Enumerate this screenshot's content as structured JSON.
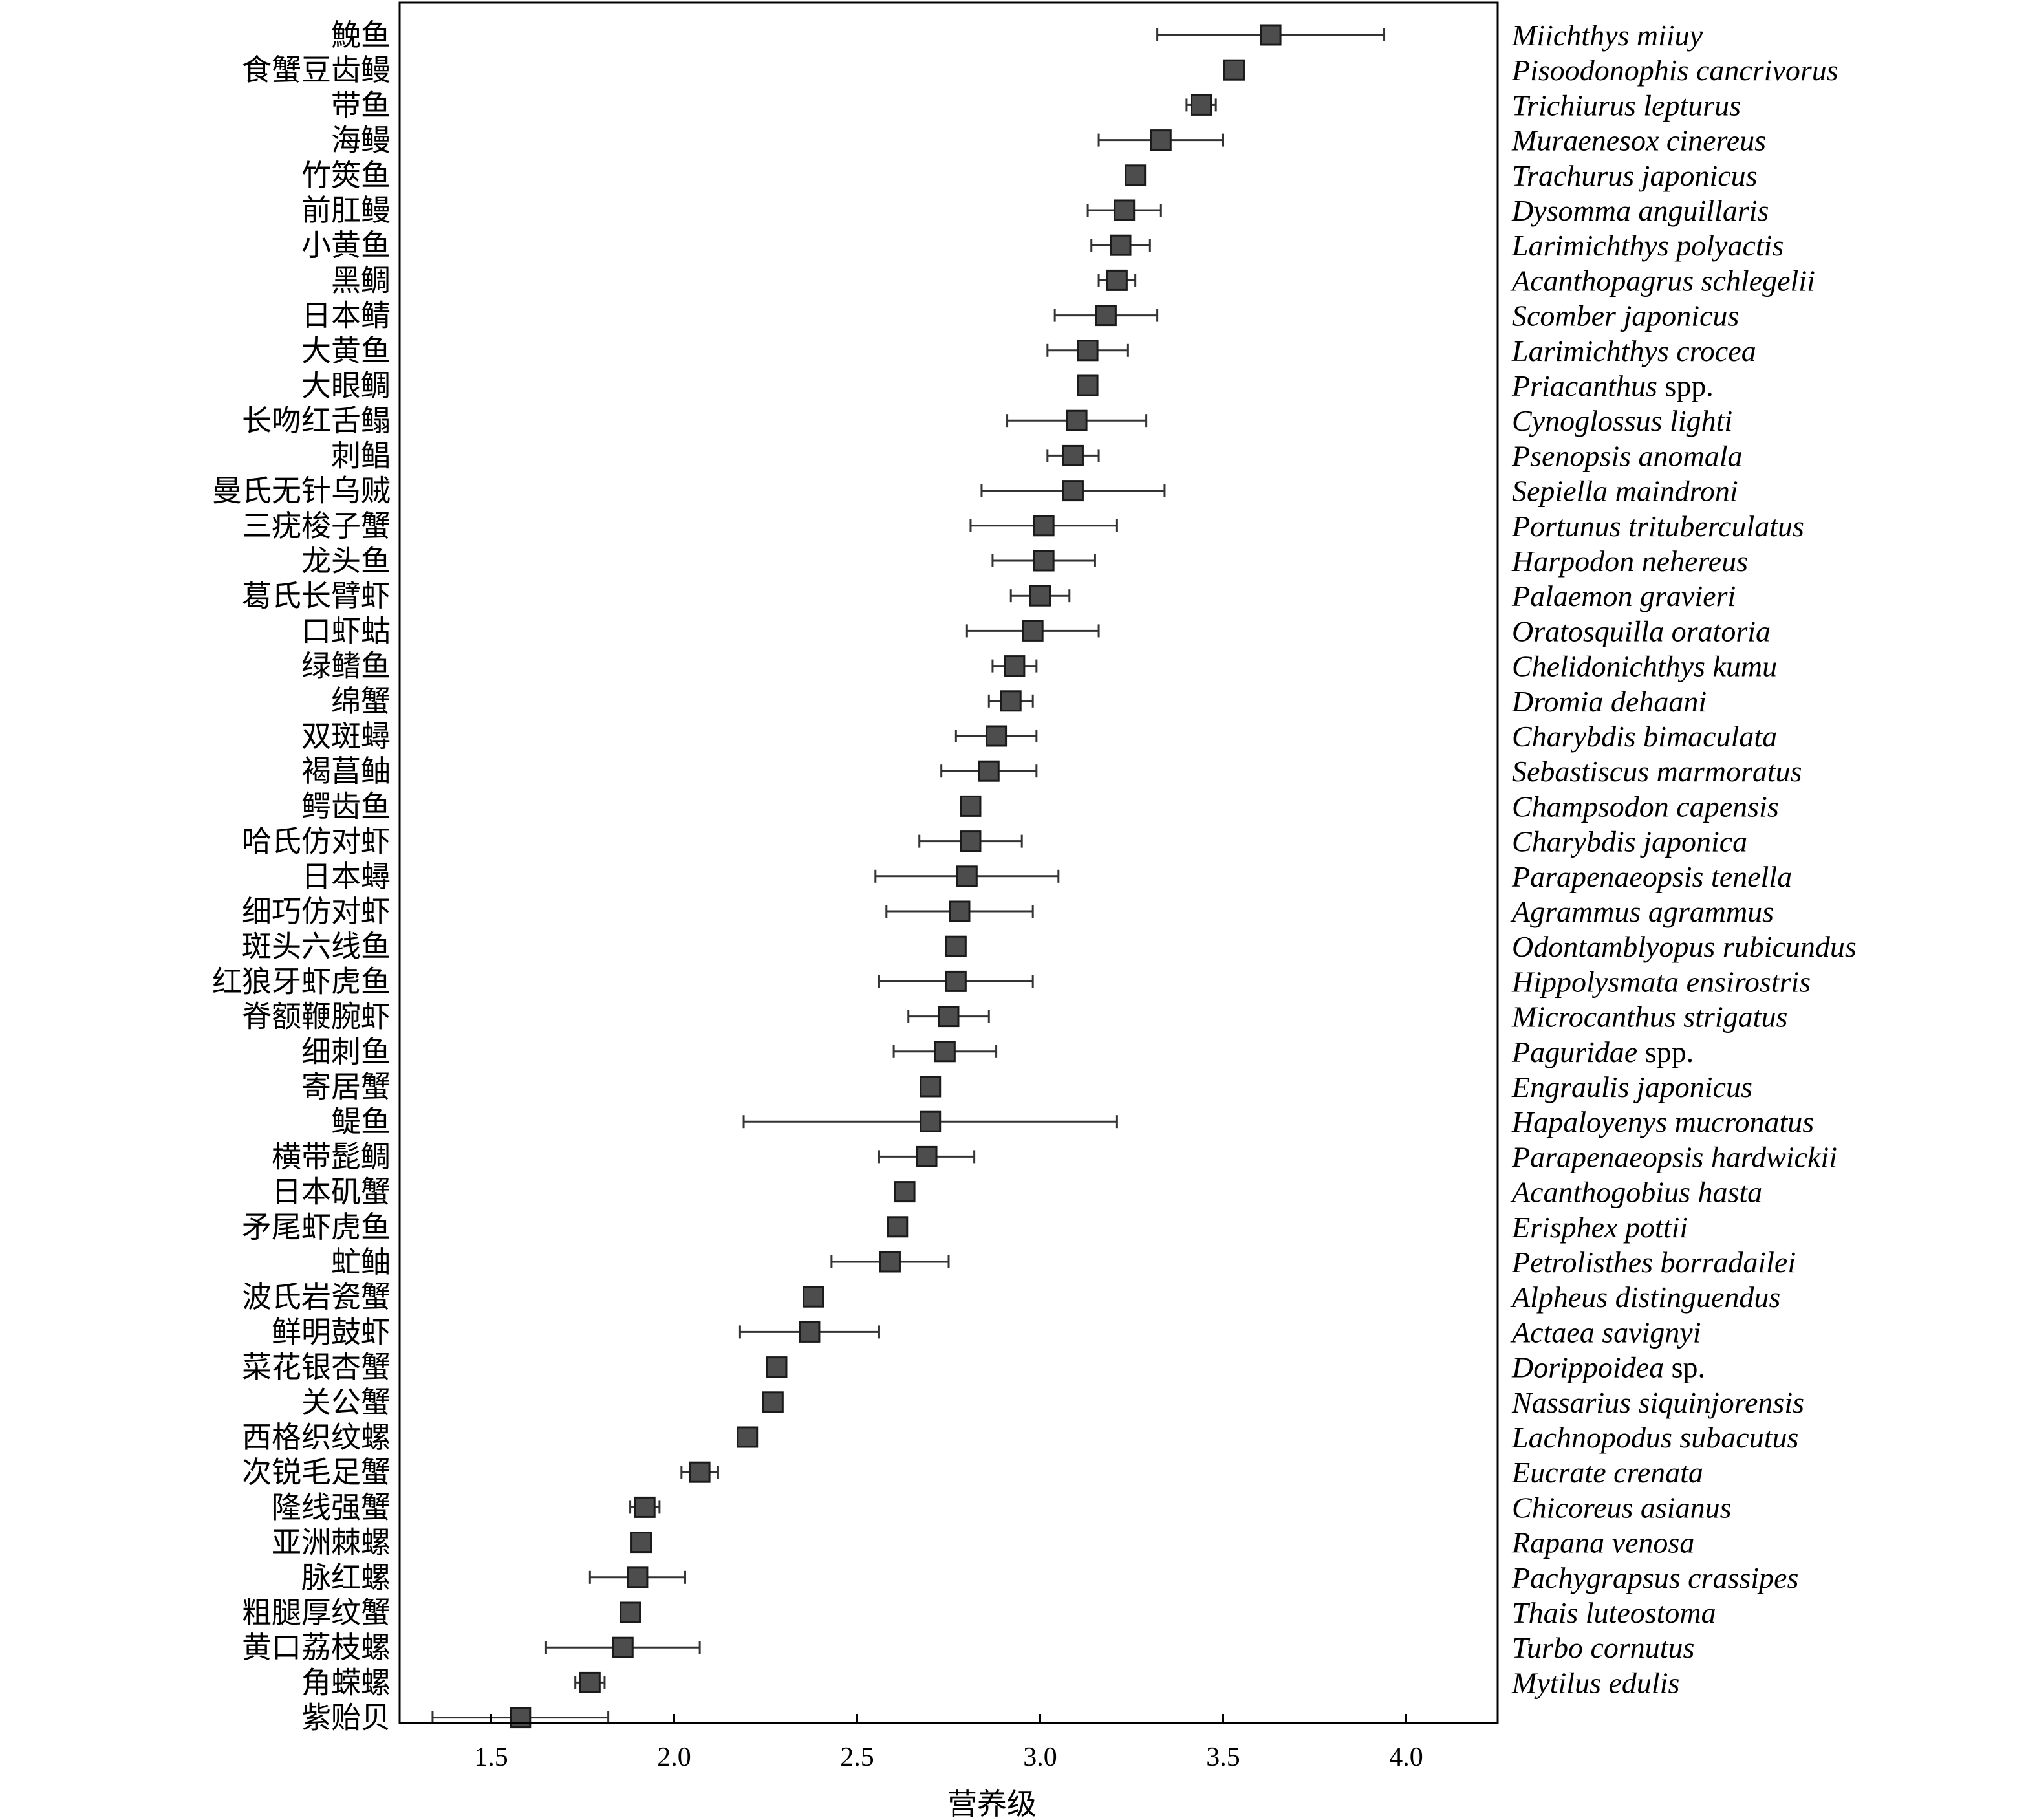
{
  "chart_data": {
    "type": "scatter",
    "description_of_marks": "square markers with horizontal error bars",
    "xlabel": "营养级",
    "xlim": [
      1.25,
      4.25
    ],
    "xticks": [
      1.5,
      2.0,
      2.5,
      3.0,
      3.5,
      4.0
    ],
    "xtick_labels": [
      "1.5",
      "2.0",
      "2.5",
      "3.0",
      "3.5",
      "4.0"
    ],
    "grid": false,
    "legend": "none",
    "colors": {
      "marker_fill": "#4d4d4d",
      "marker_edge": "#1a1a1a",
      "error_bar": "#333333",
      "axes": "#000000"
    },
    "species": [
      {
        "cn": "鮸鱼",
        "sci": [
          [
            "Miichthys miiuy",
            true
          ]
        ],
        "value": 3.63,
        "err_low": 3.32,
        "err_high": 3.94
      },
      {
        "cn": "食蟹豆齿鳗",
        "sci": [
          [
            "Pisoodonophis cancrivorus",
            true
          ]
        ],
        "value": 3.53,
        "err_low": null,
        "err_high": null
      },
      {
        "cn": "带鱼",
        "sci": [
          [
            "Trichiurus lepturus",
            true
          ]
        ],
        "value": 3.44,
        "err_low": 3.4,
        "err_high": 3.48
      },
      {
        "cn": "海鳗",
        "sci": [
          [
            "Muraenesox cinereus",
            true
          ]
        ],
        "value": 3.33,
        "err_low": 3.16,
        "err_high": 3.5
      },
      {
        "cn": "竹筴鱼",
        "sci": [
          [
            "Trachurus japonicus",
            true
          ]
        ],
        "value": 3.26,
        "err_low": 3.24,
        "err_high": 3.28
      },
      {
        "cn": "前肛鳗",
        "sci": [
          [
            "Dysomma anguillaris",
            true
          ]
        ],
        "value": 3.23,
        "err_low": 3.13,
        "err_high": 3.33
      },
      {
        "cn": "小黄鱼",
        "sci": [
          [
            "Larimichthys polyactis",
            true
          ]
        ],
        "value": 3.22,
        "err_low": 3.14,
        "err_high": 3.3
      },
      {
        "cn": "黑鲷",
        "sci": [
          [
            "Acanthopagrus schlegelii",
            true
          ]
        ],
        "value": 3.21,
        "err_low": 3.16,
        "err_high": 3.26
      },
      {
        "cn": "日本鲭",
        "sci": [
          [
            "Scomber japonicus",
            true
          ]
        ],
        "value": 3.18,
        "err_low": 3.04,
        "err_high": 3.32
      },
      {
        "cn": "大黄鱼",
        "sci": [
          [
            "Larimichthys crocea",
            true
          ]
        ],
        "value": 3.13,
        "err_low": 3.02,
        "err_high": 3.24
      },
      {
        "cn": "大眼鲷",
        "sci": [
          [
            "Priacanthus",
            true
          ],
          [
            " spp.",
            false
          ]
        ],
        "value": 3.13,
        "err_low": null,
        "err_high": null
      },
      {
        "cn": "长吻红舌鳎",
        "sci": [
          [
            "Cynoglossus lighti",
            true
          ]
        ],
        "value": 3.1,
        "err_low": 2.91,
        "err_high": 3.29
      },
      {
        "cn": "刺鲳",
        "sci": [
          [
            "Psenopsis anomala",
            true
          ]
        ],
        "value": 3.09,
        "err_low": 3.02,
        "err_high": 3.16
      },
      {
        "cn": "曼氏无针乌贼",
        "sci": [
          [
            "Sepiella maindroni",
            true
          ]
        ],
        "value": 3.09,
        "err_low": 2.84,
        "err_high": 3.34
      },
      {
        "cn": "三疣梭子蟹",
        "sci": [
          [
            "Portunus trituberculatus",
            true
          ]
        ],
        "value": 3.01,
        "err_low": 2.81,
        "err_high": 3.21
      },
      {
        "cn": "龙头鱼",
        "sci": [
          [
            "Harpodon nehereus",
            true
          ]
        ],
        "value": 3.01,
        "err_low": 2.87,
        "err_high": 3.15
      },
      {
        "cn": "葛氏长臂虾",
        "sci": [
          [
            "Palaemon gravieri",
            true
          ]
        ],
        "value": 3.0,
        "err_low": 2.92,
        "err_high": 3.08
      },
      {
        "cn": "口虾蛄",
        "sci": [
          [
            "Oratosquilla oratoria",
            true
          ]
        ],
        "value": 2.98,
        "err_low": 2.8,
        "err_high": 3.16
      },
      {
        "cn": "绿鳍鱼",
        "sci": [
          [
            "Chelidonichthys kumu",
            true
          ]
        ],
        "value": 2.93,
        "err_low": 2.87,
        "err_high": 2.99
      },
      {
        "cn": "绵蟹",
        "sci": [
          [
            "Dromia dehaani",
            true
          ]
        ],
        "value": 2.92,
        "err_low": 2.86,
        "err_high": 2.98
      },
      {
        "cn": "双斑蟳",
        "sci": [
          [
            "Charybdis bimaculata",
            true
          ]
        ],
        "value": 2.88,
        "err_low": 2.77,
        "err_high": 2.99
      },
      {
        "cn": "褐菖鲉",
        "sci": [
          [
            "Sebastiscus marmoratus",
            true
          ]
        ],
        "value": 2.86,
        "err_low": 2.73,
        "err_high": 2.99
      },
      {
        "cn": "鳄齿鱼",
        "sci": [
          [
            "Champsodon capensis",
            true
          ]
        ],
        "value": 2.81,
        "err_low": null,
        "err_high": null
      },
      {
        "cn": "哈氏仿对虾",
        "sci": [
          [
            "Charybdis japonica",
            true
          ]
        ],
        "value": 2.81,
        "err_low": 2.67,
        "err_high": 2.95
      },
      {
        "cn": "日本蟳",
        "sci": [
          [
            "Parapenaeopsis tenella",
            true
          ]
        ],
        "value": 2.8,
        "err_low": 2.55,
        "err_high": 3.05
      },
      {
        "cn": "细巧仿对虾",
        "sci": [
          [
            "Agrammus agrammus",
            true
          ]
        ],
        "value": 2.78,
        "err_low": 2.58,
        "err_high": 2.98
      },
      {
        "cn": "斑头六线鱼",
        "sci": [
          [
            "Odontamblyopus rubicundus",
            true
          ]
        ],
        "value": 2.77,
        "err_low": null,
        "err_high": null
      },
      {
        "cn": "红狼牙虾虎鱼",
        "sci": [
          [
            "Hippolysmata ensirostris",
            true
          ]
        ],
        "value": 2.77,
        "err_low": 2.56,
        "err_high": 2.98
      },
      {
        "cn": "脊额鞭腕虾",
        "sci": [
          [
            "Microcanthus strigatus",
            true
          ]
        ],
        "value": 2.75,
        "err_low": 2.64,
        "err_high": 2.86
      },
      {
        "cn": "细刺鱼",
        "sci": [
          [
            "Paguridae",
            true
          ],
          [
            " spp.",
            false
          ]
        ],
        "value": 2.74,
        "err_low": 2.6,
        "err_high": 2.88
      },
      {
        "cn": "寄居蟹",
        "sci": [
          [
            "Engraulis japonicus",
            true
          ]
        ],
        "value": 2.7,
        "err_low": null,
        "err_high": null
      },
      {
        "cn": "鳀鱼",
        "sci": [
          [
            "Hapaloyenys mucronatus",
            true
          ]
        ],
        "value": 2.7,
        "err_low": 2.19,
        "err_high": 3.21
      },
      {
        "cn": "横带髭鲷",
        "sci": [
          [
            "Parapenaeopsis hardwickii",
            true
          ]
        ],
        "value": 2.69,
        "err_low": 2.56,
        "err_high": 2.82
      },
      {
        "cn": "日本矶蟹",
        "sci": [
          [
            "Acanthogobius hasta",
            true
          ]
        ],
        "value": 2.63,
        "err_low": null,
        "err_high": null
      },
      {
        "cn": "矛尾虾虎鱼",
        "sci": [
          [
            "Erisphex pottii",
            true
          ]
        ],
        "value": 2.61,
        "err_low": null,
        "err_high": null
      },
      {
        "cn": "虻鲉",
        "sci": [
          [
            "Petrolisthes borradailei",
            true
          ]
        ],
        "value": 2.59,
        "err_low": 2.43,
        "err_high": 2.75
      },
      {
        "cn": "波氏岩瓷蟹",
        "sci": [
          [
            "Alpheus distinguendus",
            true
          ]
        ],
        "value": 2.38,
        "err_low": null,
        "err_high": null
      },
      {
        "cn": "鲜明鼓虾",
        "sci": [
          [
            "Actaea savignyi",
            true
          ]
        ],
        "value": 2.37,
        "err_low": 2.18,
        "err_high": 2.56
      },
      {
        "cn": "菜花银杏蟹",
        "sci": [
          [
            "Dorippoidea",
            true
          ],
          [
            " sp.",
            false
          ]
        ],
        "value": 2.28,
        "err_low": null,
        "err_high": null
      },
      {
        "cn": "关公蟹",
        "sci": [
          [
            "Nassarius siquinjorensis",
            true
          ]
        ],
        "value": 2.27,
        "err_low": null,
        "err_high": null
      },
      {
        "cn": "西格织纹螺",
        "sci": [
          [
            "Lachnopodus subacutus",
            true
          ]
        ],
        "value": 2.2,
        "err_low": null,
        "err_high": null
      },
      {
        "cn": "次锐毛足蟹",
        "sci": [
          [
            "Eucrate crenata",
            true
          ]
        ],
        "value": 2.07,
        "err_low": 2.02,
        "err_high": 2.12
      },
      {
        "cn": "隆线强蟹",
        "sci": [
          [
            "Chicoreus asianus",
            true
          ]
        ],
        "value": 1.92,
        "err_low": 1.88,
        "err_high": 1.96
      },
      {
        "cn": "亚洲棘螺",
        "sci": [
          [
            "Rapana venosa",
            true
          ]
        ],
        "value": 1.91,
        "err_low": null,
        "err_high": null
      },
      {
        "cn": "脉红螺",
        "sci": [
          [
            "Pachygrapsus crassipes",
            true
          ]
        ],
        "value": 1.9,
        "err_low": 1.77,
        "err_high": 2.03
      },
      {
        "cn": "粗腿厚纹蟹",
        "sci": [
          [
            "Thais luteostoma",
            true
          ]
        ],
        "value": 1.88,
        "err_low": null,
        "err_high": null
      },
      {
        "cn": "黄口荔枝螺",
        "sci": [
          [
            "Turbo cornutus",
            true
          ]
        ],
        "value": 1.86,
        "err_low": 1.65,
        "err_high": 2.07
      },
      {
        "cn": "角蝾螺",
        "sci": [
          [
            "Mytilus edulis",
            true
          ]
        ],
        "value": 1.77,
        "err_low": 1.73,
        "err_high": 1.81
      },
      {
        "cn": "紫贻贝",
        "sci": [],
        "value": 1.58,
        "err_low": 1.34,
        "err_high": 1.82
      }
    ]
  }
}
